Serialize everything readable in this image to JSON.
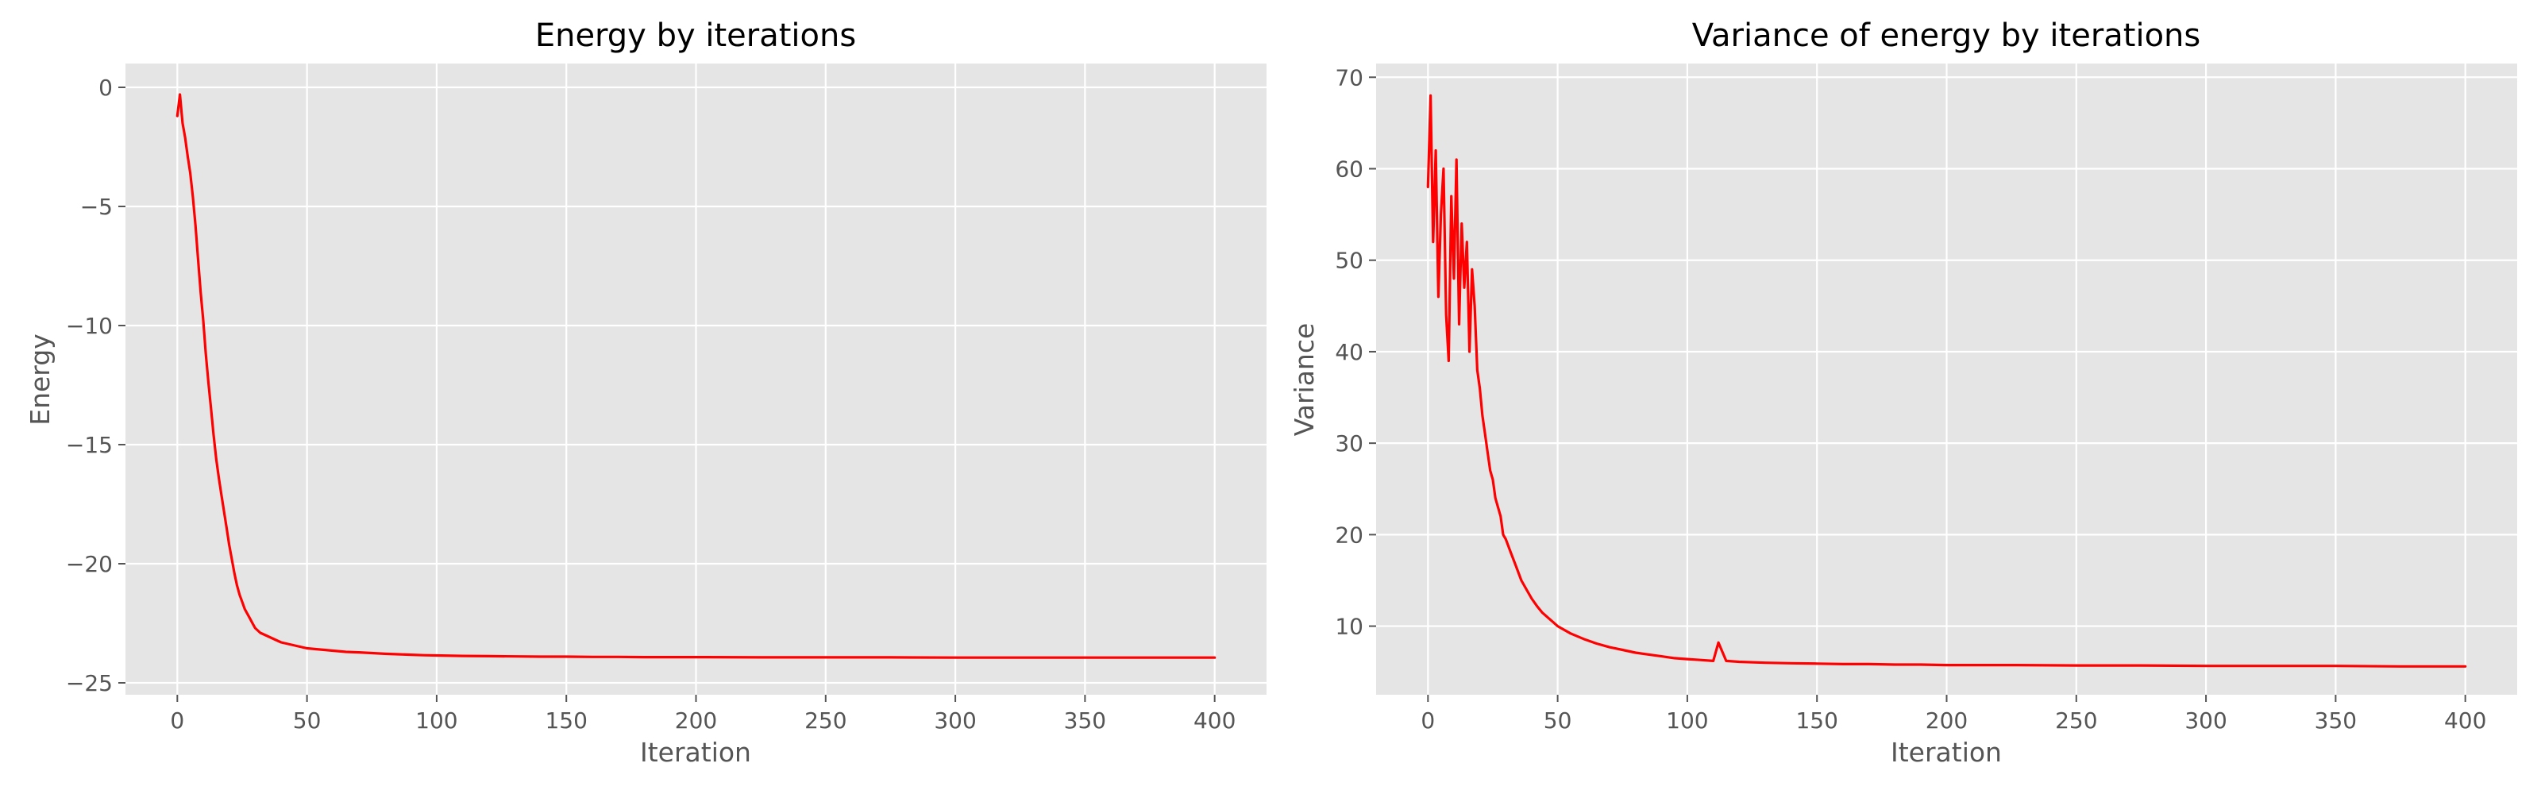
{
  "figure": {
    "background": "#ffffff",
    "plot_background": "#e5e5e5",
    "grid_color": "#ffffff",
    "text_color": "#555555",
    "line_color": "#ff0000"
  },
  "chart_data": [
    {
      "type": "line",
      "title": "Energy by iterations",
      "xlabel": "Iteration",
      "ylabel": "Energy",
      "xlim": [
        -20,
        420
      ],
      "ylim": [
        -25.5,
        1.0
      ],
      "xticks": [
        0,
        50,
        100,
        150,
        200,
        250,
        300,
        350,
        400
      ],
      "yticks": [
        0,
        -5,
        -10,
        -15,
        -20,
        -25
      ],
      "xtick_labels": [
        "0",
        "50",
        "100",
        "150",
        "200",
        "250",
        "300",
        "350",
        "400"
      ],
      "ytick_labels": [
        "0",
        "−5",
        "−10",
        "−15",
        "−20",
        "−25"
      ],
      "grid": true,
      "legend": "none",
      "series": [
        {
          "color": "#ff0000",
          "x": [
            0,
            1,
            2,
            3,
            4,
            5,
            6,
            7,
            8,
            9,
            10,
            11,
            12,
            13,
            14,
            15,
            16,
            17,
            18,
            19,
            20,
            21,
            22,
            23,
            24,
            25,
            26,
            27,
            28,
            29,
            30,
            32,
            34,
            36,
            38,
            40,
            42,
            44,
            46,
            48,
            50,
            55,
            60,
            65,
            70,
            75,
            80,
            85,
            90,
            95,
            100,
            110,
            120,
            130,
            140,
            150,
            160,
            170,
            180,
            190,
            200,
            225,
            250,
            275,
            300,
            325,
            350,
            375,
            400
          ],
          "y": [
            -1.2,
            -0.3,
            -1.5,
            -2.1,
            -2.9,
            -3.6,
            -4.6,
            -5.8,
            -7.2,
            -8.6,
            -9.8,
            -11.2,
            -12.4,
            -13.5,
            -14.6,
            -15.6,
            -16.4,
            -17.1,
            -17.8,
            -18.5,
            -19.2,
            -19.8,
            -20.4,
            -20.9,
            -21.3,
            -21.6,
            -21.9,
            -22.1,
            -22.3,
            -22.5,
            -22.7,
            -22.9,
            -23.0,
            -23.1,
            -23.2,
            -23.3,
            -23.35,
            -23.4,
            -23.45,
            -23.5,
            -23.55,
            -23.6,
            -23.65,
            -23.7,
            -23.72,
            -23.75,
            -23.78,
            -23.8,
            -23.82,
            -23.84,
            -23.85,
            -23.87,
            -23.88,
            -23.89,
            -23.9,
            -23.9,
            -23.91,
            -23.91,
            -23.92,
            -23.92,
            -23.92,
            -23.93,
            -23.93,
            -23.93,
            -23.94,
            -23.94,
            -23.94,
            -23.94,
            -23.94
          ]
        }
      ]
    },
    {
      "type": "line",
      "title": "Variance of energy by iterations",
      "xlabel": "Iteration",
      "ylabel": "Variance",
      "xlim": [
        -20,
        420
      ],
      "ylim": [
        2.5,
        71.5
      ],
      "xticks": [
        0,
        50,
        100,
        150,
        200,
        250,
        300,
        350,
        400
      ],
      "yticks": [
        10,
        20,
        30,
        40,
        50,
        60,
        70
      ],
      "xtick_labels": [
        "0",
        "50",
        "100",
        "150",
        "200",
        "250",
        "300",
        "350",
        "400"
      ],
      "ytick_labels": [
        "10",
        "20",
        "30",
        "40",
        "50",
        "60",
        "70"
      ],
      "grid": true,
      "legend": "none",
      "series": [
        {
          "color": "#ff0000",
          "x": [
            0,
            1,
            2,
            3,
            4,
            5,
            6,
            7,
            8,
            9,
            10,
            11,
            12,
            13,
            14,
            15,
            16,
            17,
            18,
            19,
            20,
            21,
            22,
            23,
            24,
            25,
            26,
            27,
            28,
            29,
            30,
            32,
            34,
            36,
            38,
            40,
            42,
            44,
            46,
            48,
            50,
            55,
            60,
            65,
            70,
            75,
            80,
            85,
            90,
            95,
            100,
            105,
            110,
            112,
            115,
            120,
            130,
            140,
            150,
            160,
            170,
            180,
            190,
            200,
            225,
            250,
            275,
            300,
            325,
            350,
            375,
            400
          ],
          "y": [
            58,
            68,
            52,
            62,
            46,
            55,
            60,
            44,
            39,
            57,
            48,
            61,
            43,
            54,
            47,
            52,
            40,
            49,
            45,
            38,
            36,
            33,
            31,
            29,
            27,
            26,
            24,
            23,
            22,
            20,
            19.5,
            18,
            16.5,
            15,
            14,
            13,
            12.2,
            11.5,
            11,
            10.5,
            10,
            9.2,
            8.6,
            8.1,
            7.7,
            7.4,
            7.1,
            6.9,
            6.7,
            6.5,
            6.4,
            6.3,
            6.2,
            8.2,
            6.2,
            6.1,
            6.0,
            5.95,
            5.9,
            5.85,
            5.85,
            5.8,
            5.8,
            5.75,
            5.75,
            5.7,
            5.7,
            5.65,
            5.65,
            5.65,
            5.6,
            5.6
          ]
        }
      ]
    }
  ]
}
